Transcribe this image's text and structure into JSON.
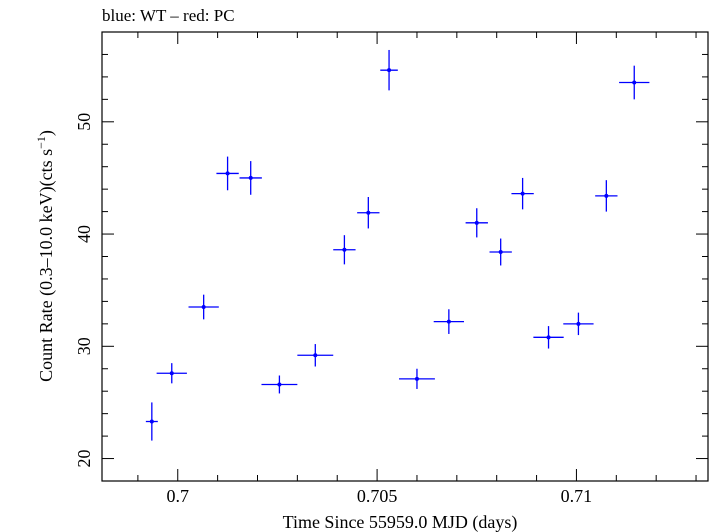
{
  "chart_data": {
    "type": "scatter",
    "title": "blue: WT – red: PC",
    "xlabel": "Time Since 55959.0 MJD (days)",
    "ylabel_main": "Count Rate (0.3–10.0 keV)(cts s",
    "ylabel_sup": "−1",
    "ylabel_end": ")",
    "xlim": [
      0.6981,
      0.7133
    ],
    "ylim": [
      18,
      58
    ],
    "xticks": [
      0.7,
      0.705,
      0.71
    ],
    "xtick_labels": [
      "0.7",
      "0.705",
      "0.71"
    ],
    "yticks": [
      20,
      30,
      40,
      50
    ],
    "ytick_labels": [
      "20",
      "30",
      "40",
      "50"
    ],
    "grid": false,
    "colors": {
      "wt": "#0000ff",
      "pc": "#ff0000"
    },
    "series": [
      {
        "name": "WT",
        "color": "#0000ff",
        "points": [
          {
            "x": 0.69935,
            "xerr": 0.00015,
            "y": 23.3,
            "yerr": 1.7
          },
          {
            "x": 0.69985,
            "xerr": 0.00038,
            "y": 27.6,
            "yerr": 0.9
          },
          {
            "x": 0.70065,
            "xerr": 0.00038,
            "y": 33.5,
            "yerr": 1.1
          },
          {
            "x": 0.70125,
            "xerr": 0.00028,
            "y": 45.4,
            "yerr": 1.5
          },
          {
            "x": 0.70183,
            "xerr": 0.00028,
            "y": 45.0,
            "yerr": 1.5
          },
          {
            "x": 0.70255,
            "xerr": 0.00045,
            "y": 26.6,
            "yerr": 0.8
          },
          {
            "x": 0.70345,
            "xerr": 0.00045,
            "y": 29.2,
            "yerr": 1.0
          },
          {
            "x": 0.70418,
            "xerr": 0.00028,
            "y": 38.6,
            "yerr": 1.3
          },
          {
            "x": 0.70478,
            "xerr": 0.00028,
            "y": 41.9,
            "yerr": 1.4
          },
          {
            "x": 0.7053,
            "xerr": 0.00022,
            "y": 54.6,
            "yerr": 1.8
          },
          {
            "x": 0.706,
            "xerr": 0.00045,
            "y": 27.1,
            "yerr": 0.9
          },
          {
            "x": 0.7068,
            "xerr": 0.00038,
            "y": 32.2,
            "yerr": 1.1
          },
          {
            "x": 0.7075,
            "xerr": 0.00028,
            "y": 41.0,
            "yerr": 1.3
          },
          {
            "x": 0.7081,
            "xerr": 0.00028,
            "y": 38.4,
            "yerr": 1.2
          },
          {
            "x": 0.70865,
            "xerr": 0.00028,
            "y": 43.6,
            "yerr": 1.4
          },
          {
            "x": 0.7093,
            "xerr": 0.00038,
            "y": 30.8,
            "yerr": 1.0
          },
          {
            "x": 0.71005,
            "xerr": 0.00038,
            "y": 32.0,
            "yerr": 1.0
          },
          {
            "x": 0.71075,
            "xerr": 0.00028,
            "y": 43.4,
            "yerr": 1.4
          },
          {
            "x": 0.71145,
            "xerr": 0.00038,
            "y": 53.5,
            "yerr": 1.5
          }
        ]
      }
    ]
  }
}
